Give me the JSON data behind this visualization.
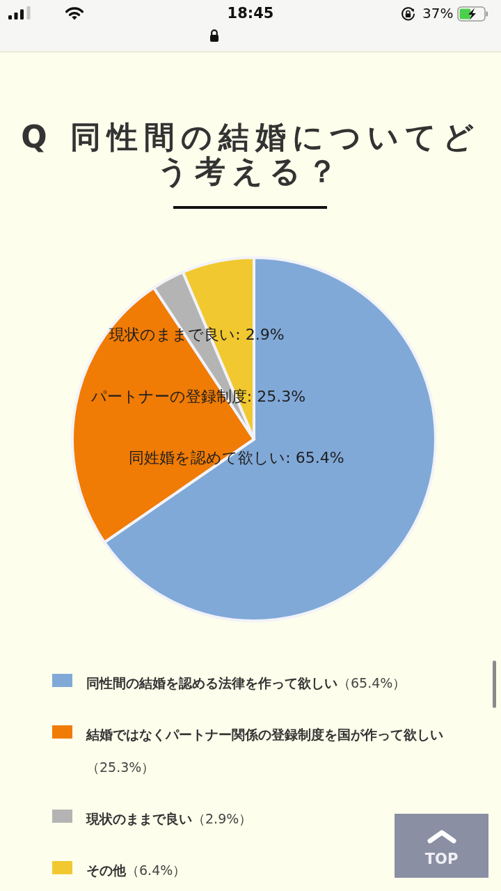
{
  "chart_data": {
    "type": "pie",
    "title": "Q 同性間の結婚についてどう考える？",
    "categories": [
      "同性間の結婚を認める法律を作って欲しい（65.4%）",
      "結婚ではなくパートナー関係の登録制度を国が作って欲しい（25.3%）",
      "現状のままで良い（2.9%）",
      "その他（6.4%）"
    ],
    "values": [
      65.4,
      25.3,
      2.9,
      6.4
    ],
    "colors": [
      "#80a9d8",
      "#f07b05",
      "#b4b4b4",
      "#f2c830"
    ],
    "value_labels": [
      "同姓婚を認めて欲しい: 65.4%",
      "パートナーの登録制度: 25.3%",
      "現状のままで良い: 2.9%",
      null
    ],
    "legend": "bottom",
    "annotations": [
      "18:45",
      "37%",
      "TOP"
    ]
  }
}
